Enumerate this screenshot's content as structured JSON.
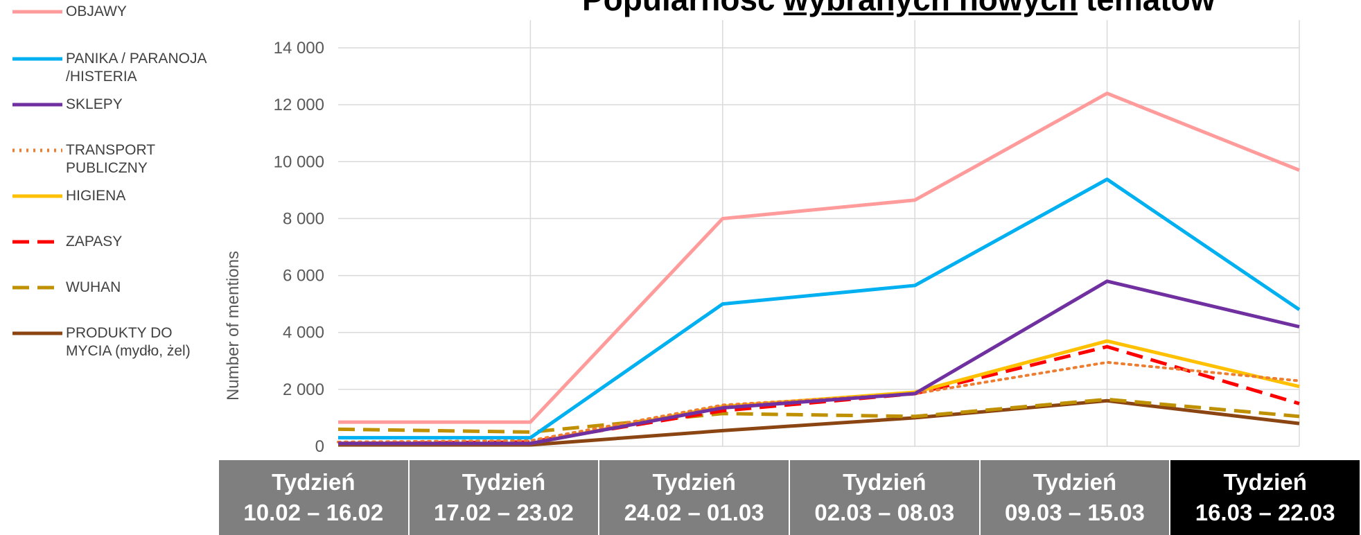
{
  "chart_data": {
    "type": "line",
    "title": [
      "Popularność",
      "wybranych nowych",
      "tematów"
    ],
    "y_label": "Number of mentions",
    "categories": [
      "Tydzień\n10.02 – 16.02",
      "Tydzień\n17.02 – 23.02",
      "Tydzień\n24.02 – 01.03",
      "Tydzień\n02.03 – 08.03",
      "Tydzień\n09.03 – 15.03",
      "Tydzień\n16.03 – 22.03"
    ],
    "category_colors": [
      "#7f7f7f",
      "#7f7f7f",
      "#7f7f7f",
      "#7f7f7f",
      "#7f7f7f",
      "#000000"
    ],
    "ylim": [
      0,
      14000
    ],
    "yticks": [
      0,
      {
        "value": 2000,
        "label": "2 000"
      },
      {
        "value": 4000,
        "label": "4 000"
      },
      {
        "value": 6000,
        "label": "6 000"
      },
      {
        "value": 8000,
        "label": "8 000"
      },
      {
        "value": 10000,
        "label": "10 000"
      },
      {
        "value": 12000,
        "label": "12 000"
      },
      {
        "value": 14000,
        "label": "14 000"
      }
    ],
    "grid": true,
    "legend": "left",
    "series": [
      {
        "name": "OBJAWY",
        "color": "#ff9b9b",
        "dash": "solid",
        "values": [
          850,
          850,
          8000,
          8650,
          12400,
          9700
        ]
      },
      {
        "name": "PANIKA / PARANOJA\n/HISTERIA",
        "color": "#00b0f0",
        "dash": "solid",
        "values": [
          300,
          300,
          5000,
          5650,
          9380,
          4800
        ]
      },
      {
        "name": "SKLEPY",
        "color": "#7030a0",
        "dash": "solid",
        "values": [
          100,
          100,
          1350,
          1850,
          5800,
          4200
        ]
      },
      {
        "name": "TRANSPORT\nPUBLICZNY",
        "color": "#ed7d31",
        "dash": "dotted",
        "values": [
          150,
          200,
          1450,
          1850,
          2950,
          2300
        ]
      },
      {
        "name": "HIGIENA",
        "color": "#ffc000",
        "dash": "solid",
        "values": [
          100,
          100,
          1400,
          1900,
          3700,
          2100
        ]
      },
      {
        "name": "ZAPASY",
        "color": "#ff0000",
        "dash": "dashed",
        "values": [
          100,
          150,
          1250,
          1850,
          3500,
          1500
        ]
      },
      {
        "name": "WUHAN",
        "color": "#bf9000",
        "dash": "dashed",
        "values": [
          600,
          500,
          1150,
          1050,
          1650,
          1050
        ]
      },
      {
        "name": "PRODUKTY DO\nMYCIA (mydło, żel)",
        "color": "#8b4513",
        "dash": "solid",
        "values": [
          50,
          50,
          550,
          1000,
          1600,
          800
        ]
      }
    ]
  }
}
